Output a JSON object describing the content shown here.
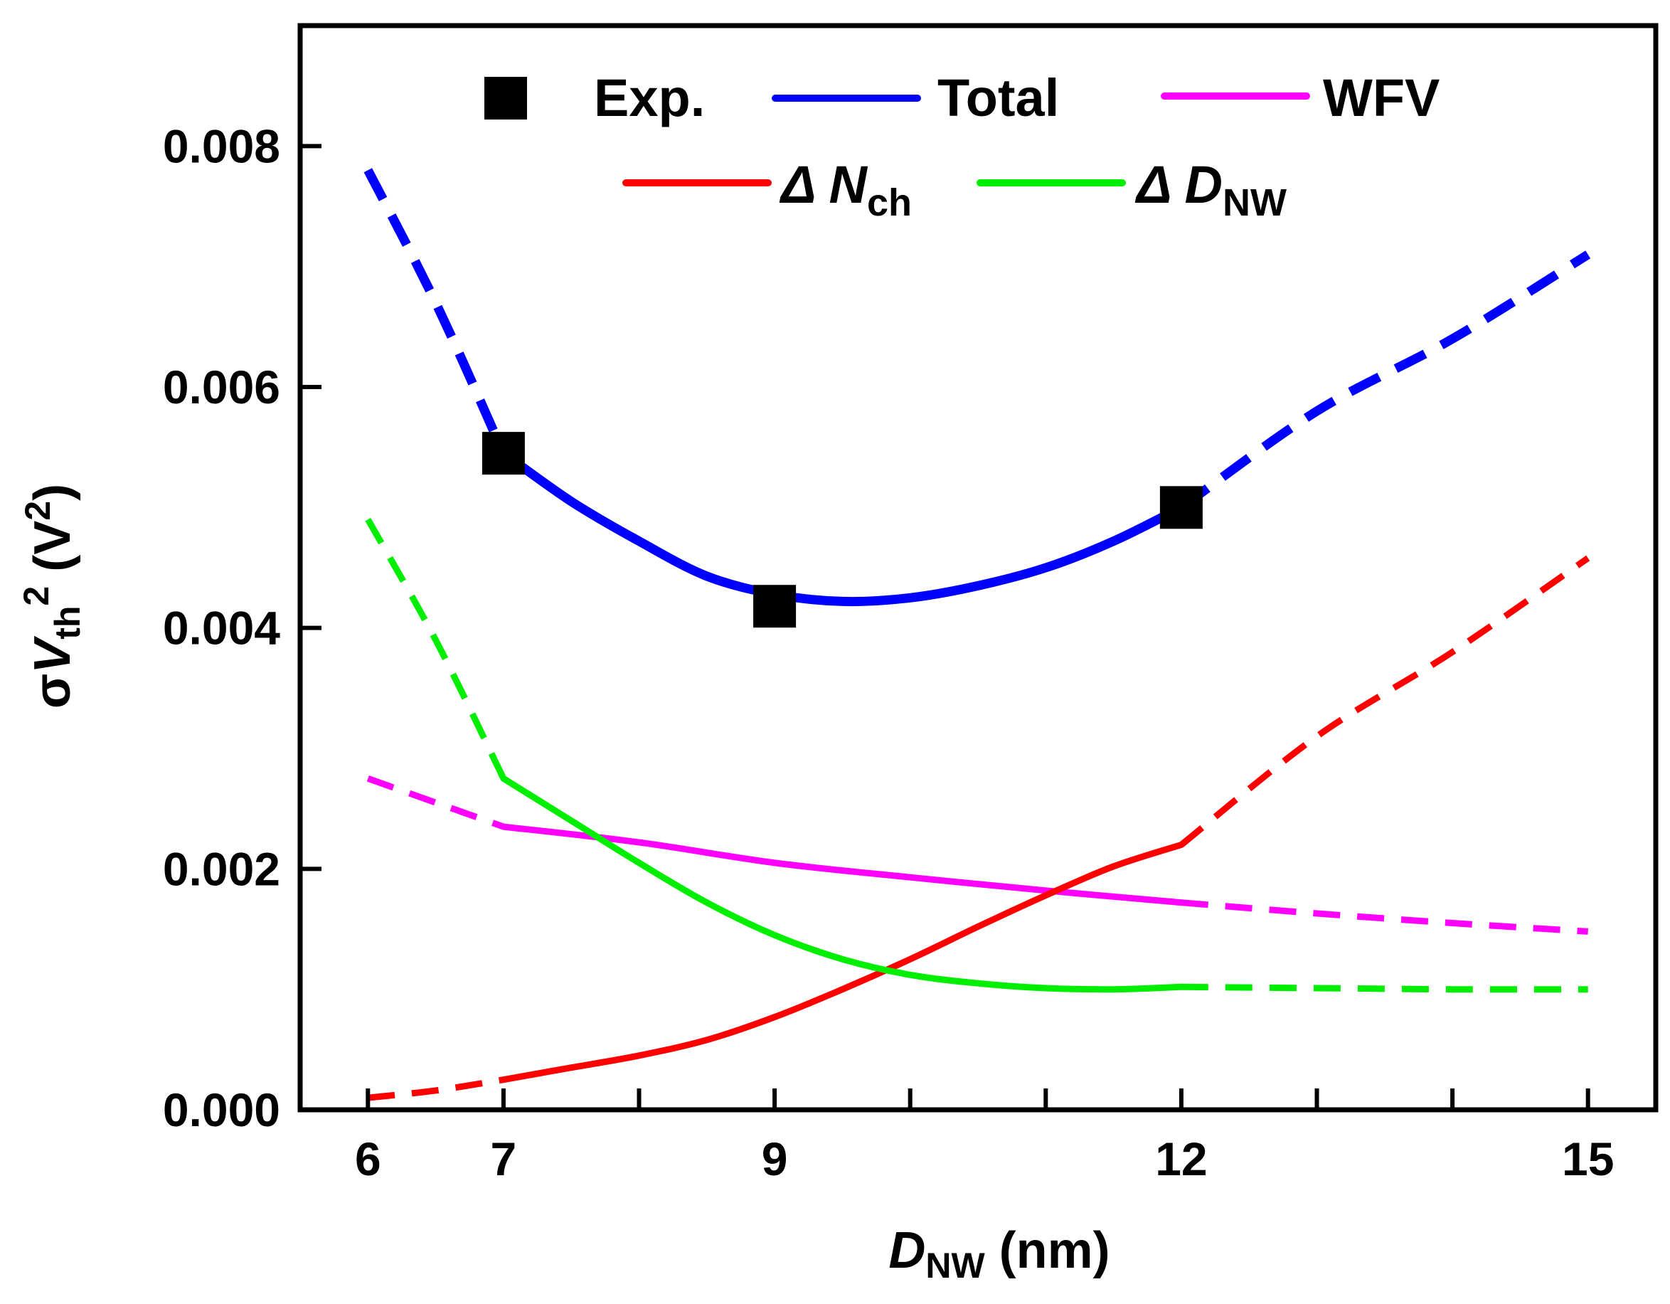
{
  "chart_data": {
    "type": "line",
    "xlabel": {
      "main": "D",
      "sub": "NW",
      "unit": " (nm)"
    },
    "ylabel": {
      "prefix": "σ",
      "main": "V",
      "sub": "th",
      "sup": "2",
      "unit_open": " (V",
      "unit_sup": "2",
      "unit_close": ")"
    },
    "xlim": [
      5.5,
      15.5
    ],
    "ylim": [
      0,
      0.009
    ],
    "xticks": [
      {
        "value": 6,
        "label": "6"
      },
      {
        "value": 7,
        "label": "7"
      },
      {
        "value": 9,
        "label": "9"
      },
      {
        "value": 12,
        "label": "12"
      },
      {
        "value": 15,
        "label": "15"
      }
    ],
    "xminor": [
      8,
      10,
      11,
      13,
      14
    ],
    "yticks": [
      {
        "value": 0,
        "label": "0.000"
      },
      {
        "value": 0.002,
        "label": "0.002"
      },
      {
        "value": 0.004,
        "label": "0.004"
      },
      {
        "value": 0.006,
        "label": "0.006"
      },
      {
        "value": 0.008,
        "label": "0.008"
      }
    ],
    "legend": {
      "placement": "top",
      "entries": [
        {
          "key": "exp",
          "label": "Exp."
        },
        {
          "key": "total",
          "label": "Total"
        },
        {
          "key": "wfv",
          "label": "WFV"
        },
        {
          "key": "nch",
          "prefix": "Δ ",
          "main": "N",
          "sub": "ch"
        },
        {
          "key": "dnw",
          "prefix": "Δ ",
          "main": "D",
          "sub": "NW"
        }
      ]
    },
    "experimental": {
      "name": "Exp.",
      "color": "#000000",
      "points": [
        {
          "x": 7,
          "y": 0.00545
        },
        {
          "x": 9,
          "y": 0.00418
        },
        {
          "x": 12,
          "y": 0.005
        }
      ]
    },
    "series": [
      {
        "name": "Total",
        "key": "total",
        "color": "#0000ff",
        "solid": {
          "x": [
            7,
            7.5,
            8,
            8.5,
            9,
            9.5,
            10,
            10.5,
            11,
            11.5,
            12
          ],
          "y": [
            0.00545,
            0.00505,
            0.00472,
            0.00443,
            0.00428,
            0.00422,
            0.00425,
            0.00435,
            0.0045,
            0.00472,
            0.005
          ]
        },
        "dashed": [
          {
            "x": [
              6,
              6.5,
              7
            ],
            "y": [
              0.0078,
              0.0067,
              0.00545
            ]
          },
          {
            "x": [
              12,
              13,
              14,
              15
            ],
            "y": [
              0.005,
              0.0058,
              0.0064,
              0.0071
            ]
          }
        ]
      },
      {
        "name": "WFV",
        "key": "wfv",
        "color": "#ff00ff",
        "solid": {
          "x": [
            7,
            8,
            9,
            10,
            11,
            12
          ],
          "y": [
            0.00235,
            0.00222,
            0.00205,
            0.00193,
            0.00182,
            0.00172
          ]
        },
        "dashed": [
          {
            "x": [
              6,
              6.5,
              7
            ],
            "y": [
              0.00275,
              0.00255,
              0.00235
            ]
          },
          {
            "x": [
              12,
              13,
              14,
              15
            ],
            "y": [
              0.00172,
              0.00163,
              0.00155,
              0.00148
            ]
          }
        ]
      },
      {
        "name": "ΔNch",
        "key": "nch",
        "color": "#ff0000",
        "solid": {
          "x": [
            7,
            7.5,
            8,
            8.5,
            9,
            9.5,
            10,
            10.5,
            11,
            11.5,
            12
          ],
          "y": [
            0.00025,
            0.00035,
            0.00045,
            0.00058,
            0.00077,
            0.001,
            0.00125,
            0.00152,
            0.00178,
            0.00202,
            0.0022
          ]
        },
        "dashed": [
          {
            "x": [
              6,
              6.5,
              7
            ],
            "y": [
              0.0001,
              0.00016,
              0.00025
            ]
          },
          {
            "x": [
              12,
              13,
              14,
              15
            ],
            "y": [
              0.0022,
              0.0031,
              0.0038,
              0.00458
            ]
          }
        ]
      },
      {
        "name": "ΔDNW",
        "key": "dnw",
        "color": "#00ee00",
        "solid": {
          "x": [
            7,
            7.5,
            8,
            8.5,
            9,
            9.5,
            10,
            10.5,
            11,
            11.5,
            12
          ],
          "y": [
            0.00275,
            0.0024,
            0.00205,
            0.00172,
            0.00145,
            0.00125,
            0.00112,
            0.00105,
            0.00101,
            0.001,
            0.00102
          ]
        },
        "dashed": [
          {
            "x": [
              6,
              6.5,
              7
            ],
            "y": [
              0.0049,
              0.0039,
              0.00275
            ]
          },
          {
            "x": [
              12,
              13,
              14,
              15
            ],
            "y": [
              0.00102,
              0.00101,
              0.001,
              0.001
            ]
          }
        ]
      }
    ]
  }
}
